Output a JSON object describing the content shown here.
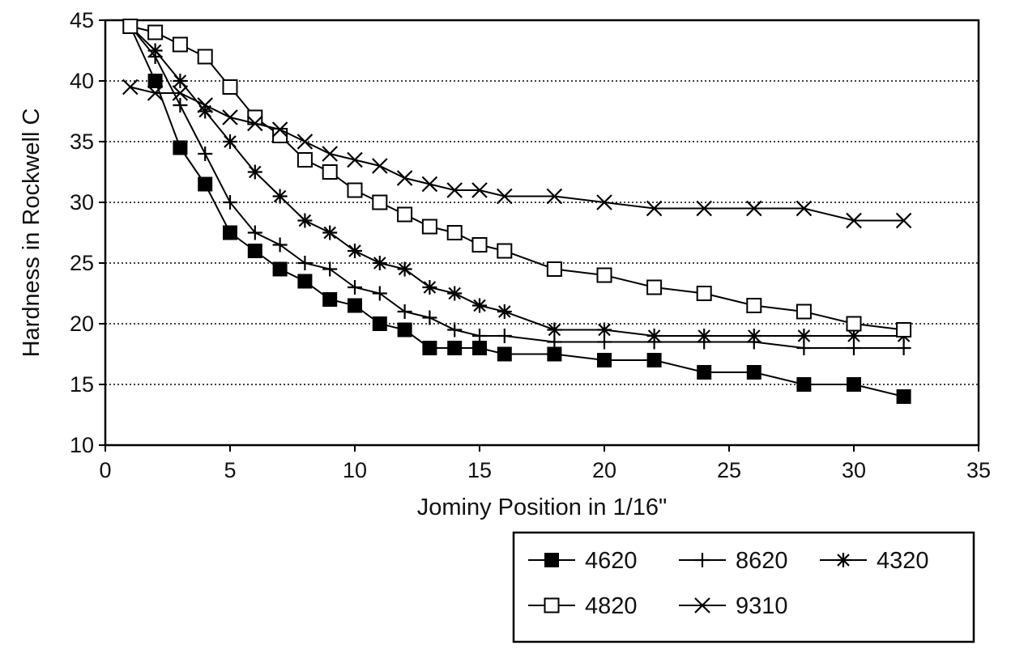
{
  "chart_data": {
    "type": "line",
    "title": "",
    "xlabel": "Jominy Position in 1/16\"",
    "ylabel": "Hardness in Rockwell C",
    "xlim": [
      0,
      35
    ],
    "ylim": [
      10,
      45
    ],
    "xticks": [
      0,
      5,
      10,
      15,
      20,
      25,
      30,
      35
    ],
    "yticks": [
      10,
      15,
      20,
      25,
      30,
      35,
      40,
      45
    ],
    "grid": "horizontal dotted",
    "legend_position": "bottom-right",
    "series": [
      {
        "name": "4620",
        "marker": "filled-square",
        "x": [
          1,
          2,
          3,
          4,
          5,
          6,
          7,
          8,
          9,
          10,
          11,
          12,
          13,
          14,
          15,
          16,
          18,
          20,
          22,
          24,
          26,
          28,
          30,
          32
        ],
        "y": [
          44.5,
          40,
          34.5,
          31.5,
          27.5,
          26,
          24.5,
          23.5,
          22,
          21.5,
          20,
          19.5,
          18,
          18,
          18,
          17.5,
          17.5,
          17,
          17,
          16,
          16,
          15,
          15,
          14
        ]
      },
      {
        "name": "8620",
        "marker": "plus",
        "x": [
          1,
          2,
          3,
          4,
          5,
          6,
          7,
          8,
          9,
          10,
          11,
          12,
          13,
          14,
          15,
          16,
          18,
          20,
          22,
          24,
          26,
          28,
          30,
          32
        ],
        "y": [
          44.5,
          42,
          38,
          34,
          30,
          27.5,
          26.5,
          25,
          24.5,
          23,
          22.5,
          21,
          20.5,
          19.5,
          19,
          19,
          18.5,
          18.5,
          18.5,
          18.5,
          18.5,
          18,
          18,
          18
        ]
      },
      {
        "name": "4320",
        "marker": "asterisk",
        "x": [
          1,
          2,
          3,
          4,
          5,
          6,
          7,
          8,
          9,
          10,
          11,
          12,
          13,
          14,
          15,
          16,
          18,
          20,
          22,
          24,
          26,
          28,
          30,
          32
        ],
        "y": [
          44.5,
          42.5,
          40,
          37.5,
          35,
          32.5,
          30.5,
          28.5,
          27.5,
          26,
          25,
          24.5,
          23,
          22.5,
          21.5,
          21,
          19.5,
          19.5,
          19,
          19,
          19,
          19,
          19,
          19
        ]
      },
      {
        "name": "4820",
        "marker": "open-square",
        "x": [
          1,
          2,
          3,
          4,
          5,
          6,
          7,
          8,
          9,
          10,
          11,
          12,
          13,
          14,
          15,
          16,
          18,
          20,
          22,
          24,
          26,
          28,
          30,
          32
        ],
        "y": [
          44.5,
          44,
          43,
          42,
          39.5,
          37,
          35.5,
          33.5,
          32.5,
          31,
          30,
          29,
          28,
          27.5,
          26.5,
          26,
          24.5,
          24,
          23,
          22.5,
          21.5,
          21,
          20,
          19.5
        ]
      },
      {
        "name": "9310",
        "marker": "x",
        "x": [
          1,
          2,
          3,
          4,
          5,
          6,
          7,
          8,
          9,
          10,
          11,
          12,
          13,
          14,
          15,
          16,
          18,
          20,
          22,
          24,
          26,
          28,
          30,
          32
        ],
        "y": [
          39.5,
          39,
          39,
          38,
          37,
          36.5,
          36,
          35,
          34,
          33.5,
          33,
          32,
          31.5,
          31,
          31,
          30.5,
          30.5,
          30,
          29.5,
          29.5,
          29.5,
          29.5,
          28.5,
          28.5
        ]
      }
    ]
  }
}
